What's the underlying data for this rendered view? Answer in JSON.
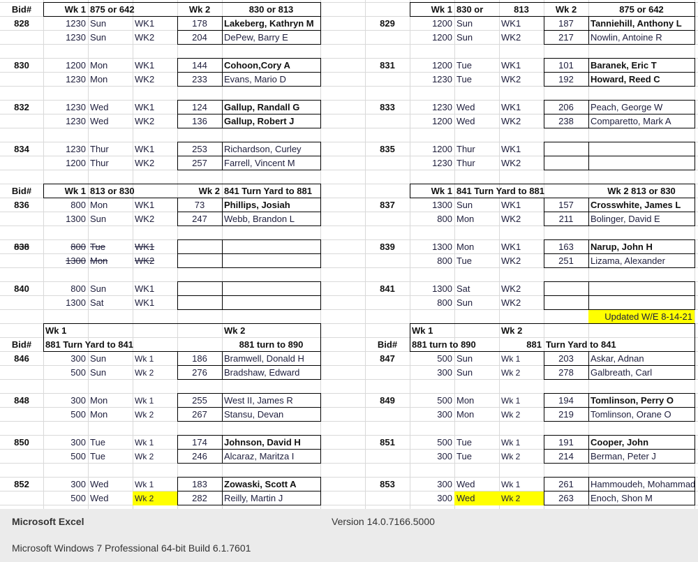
{
  "sections": [
    {
      "left_header": [
        "Bid#",
        "Wk 1",
        "875 or 642",
        "Wk 2",
        "830 or 813"
      ],
      "right_header": [
        "Wk 1",
        "830 or",
        "813",
        "Wk 2",
        "875 or 642"
      ],
      "left_bids": [
        {
          "bid": "828",
          "rows": [
            {
              "time": "1230",
              "day": "Sun",
              "wk": "WK1",
              "id": "178",
              "name": "Lakeberg, Kathryn M",
              "bold": true
            },
            {
              "time": "1230",
              "day": "Sun",
              "wk": "WK2",
              "id": "204",
              "name": "DePew, Barry E"
            }
          ]
        },
        {
          "bid": "830",
          "rows": [
            {
              "time": "1200",
              "day": "Mon",
              "wk": "WK1",
              "id": "144",
              "name": "Cohoon,Cory A",
              "bold": true
            },
            {
              "time": "1230",
              "day": "Mon",
              "wk": "WK2",
              "id": "233",
              "name": "Evans, Mario D"
            }
          ]
        },
        {
          "bid": "832",
          "rows": [
            {
              "time": "1230",
              "day": "Wed",
              "wk": "WK1",
              "id": "124",
              "name": "Gallup, Randall G",
              "bold": true
            },
            {
              "time": "1230",
              "day": "Wed",
              "wk": "WK2",
              "id": "136",
              "name": "Gallup, Robert J",
              "bold": true
            }
          ]
        },
        {
          "bid": "834",
          "rows": [
            {
              "time": "1230",
              "day": "Thur",
              "wk": "WK1",
              "id": "253",
              "name": "Richardson, Curley"
            },
            {
              "time": "1200",
              "day": "Thur",
              "wk": "WK2",
              "id": "257",
              "name": "Farrell, Vincent M"
            }
          ]
        }
      ],
      "right_bids": [
        {
          "bid": "829",
          "rows": [
            {
              "time": "1200",
              "day": "Sun",
              "wk": "WK1",
              "id": "187",
              "name": "Tanniehill, Anthony L",
              "bold": true
            },
            {
              "time": "1200",
              "day": "Sun",
              "wk": "WK2",
              "id": "217",
              "name": "Nowlin, Antoine R"
            }
          ]
        },
        {
          "bid": "831",
          "rows": [
            {
              "time": "1200",
              "day": "Tue",
              "wk": "WK1",
              "id": "101",
              "name": "Baranek, Eric T",
              "bold": true
            },
            {
              "time": "1230",
              "day": "Tue",
              "wk": "WK2",
              "id": "192",
              "name": "Howard, Reed C",
              "bold": true
            }
          ]
        },
        {
          "bid": "833",
          "rows": [
            {
              "time": "1230",
              "day": "Wed",
              "wk": "WK1",
              "id": "206",
              "name": "Peach, George W"
            },
            {
              "time": "1200",
              "day": "Wed",
              "wk": "WK2",
              "id": "238",
              "name": "Comparetto, Mark A"
            }
          ]
        },
        {
          "bid": "835",
          "rows": [
            {
              "time": "1200",
              "day": "Thur",
              "wk": "WK1",
              "id": "",
              "name": ""
            },
            {
              "time": "1230",
              "day": "Thur",
              "wk": "WK2",
              "id": "",
              "name": ""
            }
          ]
        }
      ]
    },
    {
      "left_header": [
        "Bid#",
        "Wk 1",
        "813 or 830",
        "Wk 2",
        "841 Turn Yard to 881"
      ],
      "right_header": [
        "Wk 1",
        "841 Turn Yard to 881",
        "Wk 2  813 or 830"
      ],
      "left_bids": [
        {
          "bid": "836",
          "rows": [
            {
              "time": "800",
              "day": "Mon",
              "wk": "WK1",
              "id": "73",
              "name": "Phillips, Josiah",
              "bold": true
            },
            {
              "time": "1300",
              "day": "Sun",
              "wk": "WK2",
              "id": "247",
              "name": "Webb, Brandon L"
            }
          ]
        },
        {
          "bid": "838",
          "strike": true,
          "rows": [
            {
              "time": "800",
              "day": "Tue",
              "wk": "WK1",
              "id": "",
              "name": ""
            },
            {
              "time": "1300",
              "day": "Mon",
              "wk": "WK2",
              "id": "",
              "name": ""
            }
          ]
        },
        {
          "bid": "840",
          "rows": [
            {
              "time": "800",
              "day": "Sun",
              "wk": "WK1",
              "id": "",
              "name": ""
            },
            {
              "time": "1300",
              "day": "Sat",
              "wk": "WK1",
              "id": "",
              "name": ""
            }
          ]
        }
      ],
      "right_bids": [
        {
          "bid": "837",
          "rows": [
            {
              "time": "1300",
              "day": "Sun",
              "wk": "WK1",
              "id": "157",
              "name": "Crosswhite, James L",
              "bold": true
            },
            {
              "time": "800",
              "day": "Mon",
              "wk": "WK2",
              "id": "211",
              "name": "Bolinger, David E"
            }
          ]
        },
        {
          "bid": "839",
          "rows": [
            {
              "time": "1300",
              "day": "Mon",
              "wk": "WK1",
              "id": "163",
              "name": "Narup, John H",
              "bold": true
            },
            {
              "time": "800",
              "day": "Tue",
              "wk": "WK2",
              "id": "251",
              "name": "Lizama, Alexander"
            }
          ]
        },
        {
          "bid": "841",
          "rows": [
            {
              "time": "1300",
              "day": "Sat",
              "wk": "WK2",
              "id": "",
              "name": ""
            },
            {
              "time": "800",
              "day": "Sun",
              "wk": "WK2",
              "id": "",
              "name": ""
            }
          ]
        }
      ],
      "updated_note": "Updated W/E 8-14-21"
    },
    {
      "left_header_top": [
        "Wk 1",
        "Wk 2"
      ],
      "left_header": [
        "Bid#",
        "881 Turn Yard to 841",
        "881 turn to 890"
      ],
      "right_header_top": [
        "Wk 1",
        "Wk 2"
      ],
      "right_header": [
        "Bid#",
        "881 turn to 890",
        "881",
        "Turn Yard to 841"
      ],
      "left_bids": [
        {
          "bid": "846",
          "rows": [
            {
              "time": "300",
              "day": "Sun",
              "wk": "Wk 1",
              "id": "186",
              "name": "Bramwell, Donald H"
            },
            {
              "time": "500",
              "day": "Sun",
              "wk": "Wk 2",
              "id": "276",
              "name": "Bradshaw, Edward"
            }
          ]
        },
        {
          "bid": "848",
          "rows": [
            {
              "time": "300",
              "day": "Mon",
              "wk": "Wk 1",
              "id": "255",
              "name": "West II, James R"
            },
            {
              "time": "500",
              "day": "Mon",
              "wk": "Wk 2",
              "id": "267",
              "name": "Stansu, Devan"
            }
          ]
        },
        {
          "bid": "850",
          "rows": [
            {
              "time": "300",
              "day": "Tue",
              "wk": "Wk 1",
              "id": "174",
              "name": "Johnson, David H",
              "bold": true
            },
            {
              "time": "500",
              "day": "Tue",
              "wk": "Wk 2",
              "id": "246",
              "name": "Alcaraz, Maritza I"
            }
          ]
        },
        {
          "bid": "852",
          "rows": [
            {
              "time": "300",
              "day": "Wed",
              "wk": "Wk 1",
              "id": "183",
              "name": "Zowaski, Scott A",
              "bold": true
            },
            {
              "time": "500",
              "day": "Wed",
              "wk": "Wk 2",
              "id": "282",
              "name": "Reilly, Martin J",
              "highlight": [
                "wk"
              ]
            }
          ]
        }
      ],
      "right_bids": [
        {
          "bid": "847",
          "rows": [
            {
              "time": "500",
              "day": "Sun",
              "wk": "Wk 1",
              "id": "203",
              "name": "Askar, Adnan"
            },
            {
              "time": "300",
              "day": "Sun",
              "wk": "Wk 2",
              "id": "278",
              "name": "Galbreath, Carl"
            }
          ]
        },
        {
          "bid": "849",
          "rows": [
            {
              "time": "500",
              "day": "Mon",
              "wk": "Wk 1",
              "id": "194",
              "name": "Tomlinson, Perry O",
              "bold": true
            },
            {
              "time": "300",
              "day": "Mon",
              "wk": "Wk 2",
              "id": "219",
              "name": "Tomlinson, Orane O"
            }
          ]
        },
        {
          "bid": "851",
          "rows": [
            {
              "time": "500",
              "day": "Tue",
              "wk": "Wk 1",
              "id": "191",
              "name": "Cooper, John",
              "bold": true
            },
            {
              "time": "300",
              "day": "Tue",
              "wk": "Wk 2",
              "id": "214",
              "name": "Berman, Peter J"
            }
          ]
        },
        {
          "bid": "853",
          "rows": [
            {
              "time": "300",
              "day": "Wed",
              "wk": "Wk 1",
              "id": "261",
              "name": "Hammoudeh, Mohammad"
            },
            {
              "time": "300",
              "day": "Wed",
              "wk": "Wk 2",
              "id": "263",
              "name": "Enoch, Shon M",
              "highlight": [
                "day",
                "wk"
              ]
            }
          ]
        }
      ]
    }
  ],
  "colors": {
    "highlight": "#ffff00",
    "gridline": "#d9d9d9",
    "footer_bg": "#ebebeb"
  },
  "footer": {
    "app_name": "Microsoft Excel",
    "version": "Version 14.0.7166.5000",
    "os": "Microsoft Windows 7 Professional  64-bit Build 6.1.7601"
  }
}
